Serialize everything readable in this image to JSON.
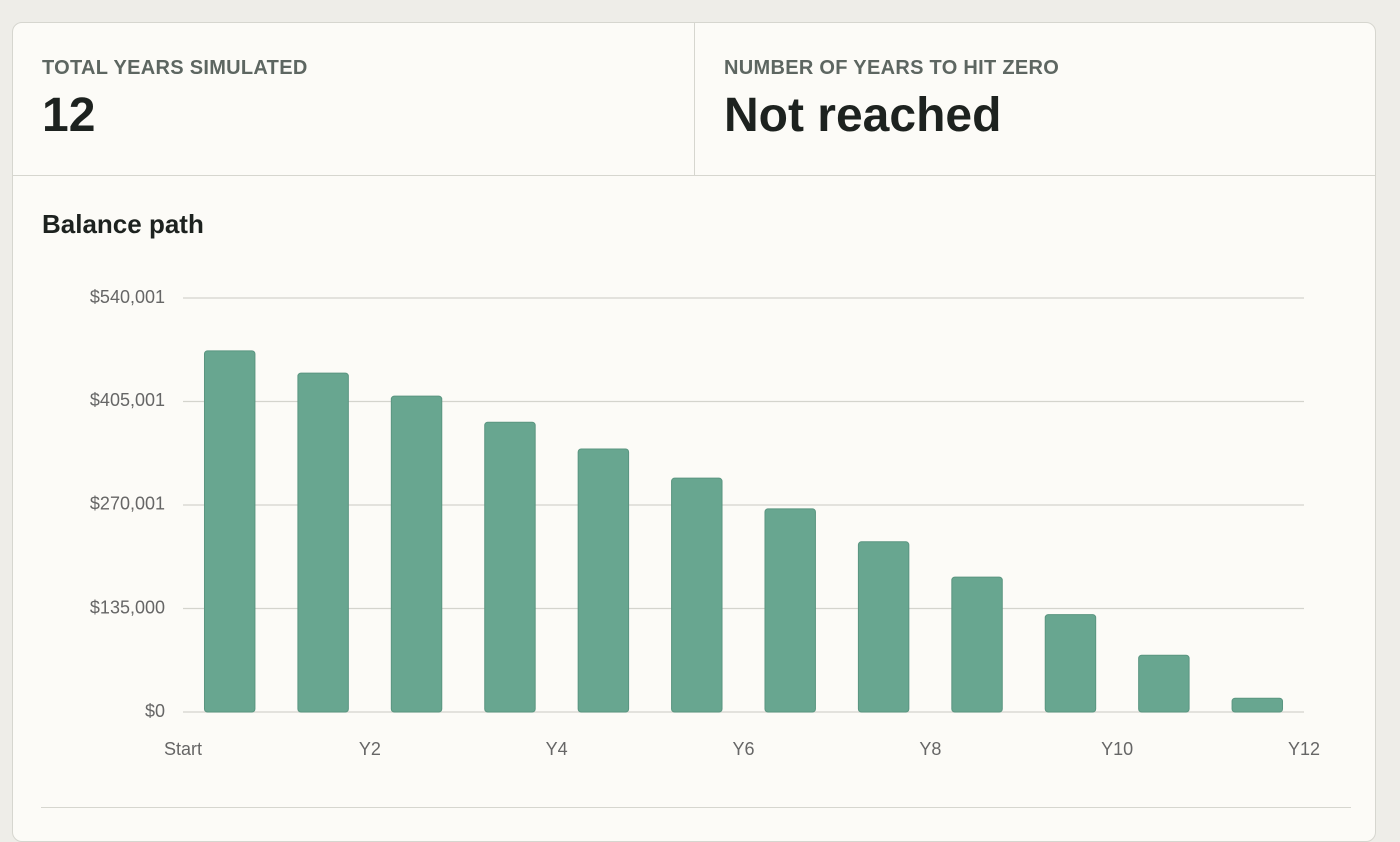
{
  "stats": [
    {
      "label": "TOTAL YEARS SIMULATED",
      "value": "12"
    },
    {
      "label": "NUMBER OF YEARS TO HIT ZERO",
      "value": "Not reached"
    }
  ],
  "chart_data": {
    "type": "bar",
    "title": "Balance path",
    "values": [
      471000,
      442000,
      412000,
      378000,
      343000,
      305000,
      265000,
      222000,
      176000,
      127000,
      74000,
      18000
    ],
    "color": "#68a690",
    "xlim": [
      0,
      12
    ],
    "xticks": [
      {
        "value": 0,
        "label": "Start"
      },
      {
        "value": 2,
        "label": "Y2"
      },
      {
        "value": 4,
        "label": "Y4"
      },
      {
        "value": 6,
        "label": "Y6"
      },
      {
        "value": 8,
        "label": "Y8"
      },
      {
        "value": 10,
        "label": "Y10"
      },
      {
        "value": 12,
        "label": "Y12"
      }
    ],
    "ylim": [
      0,
      540001
    ],
    "yticks": [
      {
        "value": 0,
        "label": "$0"
      },
      {
        "value": 135000,
        "label": "$135,000"
      },
      {
        "value": 270001,
        "label": "$270,001"
      },
      {
        "value": 405001,
        "label": "$405,001"
      },
      {
        "value": 540001,
        "label": "$540,001"
      }
    ],
    "grid": true
  }
}
